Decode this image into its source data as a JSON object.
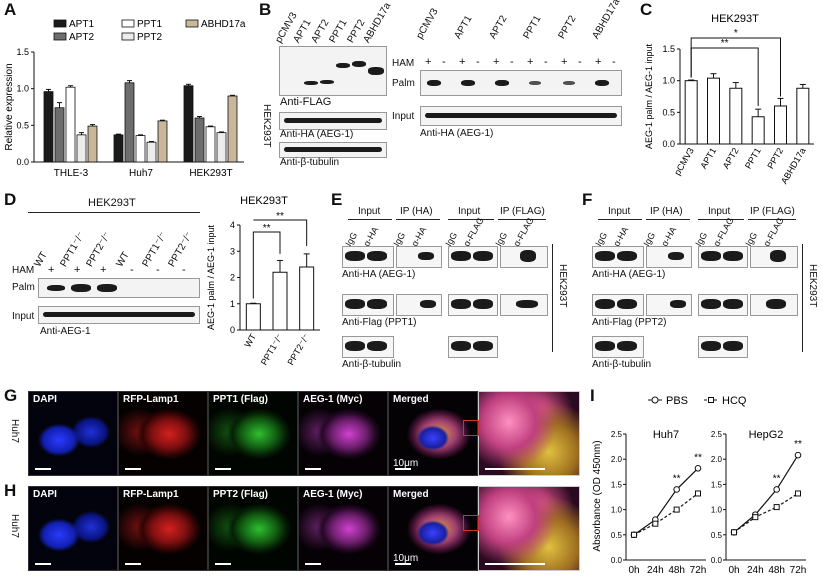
{
  "panels": {
    "A": {
      "letter": "A"
    },
    "B": {
      "letter": "B",
      "cell": "HEK293T",
      "lanes": [
        "pCMV3",
        "APT1",
        "APT2",
        "PPT1",
        "PPT2",
        "ABHD17a"
      ],
      "anti_flag": "Anti-FLAG",
      "anti_ha": "Anti-HA (AEG-1)",
      "anti_tub": "Anti-β-tubulin",
      "ham": "HAM",
      "palm": "Palm",
      "input": "Input",
      "anti_ha2": "Anti-HA (AEG-1)",
      "ham_signs": [
        "+",
        "-",
        "+",
        "-",
        "+",
        "-",
        "+",
        "-",
        "+",
        "-",
        "+",
        "-"
      ]
    },
    "C": {
      "letter": "C",
      "title": "HEK293T",
      "ylabel": "AEG-1 palm / AEG-1 input",
      "sig1": "*",
      "sig2": "**"
    },
    "D": {
      "letter": "D",
      "cell": "HEK293T",
      "lanes": [
        "WT",
        "PPT1⁻/⁻",
        "PPT2⁻/⁻",
        "WT",
        "PPT1⁻/⁻",
        "PPT2⁻/⁻"
      ],
      "ham": "HAM",
      "ham_signs": [
        "+",
        "+",
        "+",
        "-",
        "-",
        "-"
      ],
      "palm": "Palm",
      "input": "Input",
      "anti": "Anti-AEG-1",
      "title": "HEK293T",
      "ylabel": "AEG-1 palm / AEG-1 input",
      "sig": "**"
    },
    "E": {
      "letter": "E",
      "input": "Input",
      "ip_ha": "IP (HA)",
      "ip_flag": "IP (FLAG)",
      "lanes_ha": [
        "IgG",
        "α-HA",
        "IgG",
        "α-HA"
      ],
      "lanes_flag": [
        "IgG",
        "α-FLAG",
        "IgG",
        "α-FLAG"
      ],
      "row1": "Anti-HA (AEG-1)",
      "row2": "Anti-Flag (PPT1)",
      "row3": "Anti-β-tubulin",
      "cell": "HEK293T"
    },
    "F": {
      "letter": "F",
      "input": "Input",
      "ip_ha": "IP (HA)",
      "ip_flag": "IP (FLAG)",
      "lanes_ha": [
        "IgG",
        "α-HA",
        "IgG",
        "α-HA"
      ],
      "lanes_flag": [
        "IgG",
        "α-FLAG",
        "IgG",
        "α-FLAG"
      ],
      "row1": "Anti-HA (AEG-1)",
      "row2": "Anti-Flag (PPT2)",
      "row3": "Anti-β-tubulin",
      "cell": "HEK293T"
    },
    "G": {
      "letter": "G",
      "cell": "Huh7",
      "channels": [
        "DAPI",
        "RFP-Lamp1",
        "PPT1 (Flag)",
        "AEG-1 (Myc)",
        "Merged"
      ],
      "scale": "10μm"
    },
    "H": {
      "letter": "H",
      "cell": "Huh7",
      "channels": [
        "DAPI",
        "RFP-Lamp1",
        "PPT2 (Flag)",
        "AEG-1 (Myc)",
        "Merged"
      ],
      "scale": "10μm"
    },
    "I": {
      "letter": "I",
      "legend": [
        "PBS",
        "HCQ"
      ],
      "ylabel": "Absorbance (OD 450nm)",
      "sig": "**"
    }
  },
  "chart_data": [
    {
      "id": "A",
      "type": "bar",
      "categories": [
        "THLE-3",
        "Huh7",
        "HEK293T"
      ],
      "series": [
        {
          "name": "APT1",
          "color": "#1a1a1a",
          "values": [
            0.96,
            0.37,
            1.04
          ],
          "err": [
            0.03,
            0.01,
            0.02
          ]
        },
        {
          "name": "APT2",
          "color": "#6d6d6d",
          "values": [
            0.74,
            1.08,
            0.6
          ],
          "err": [
            0.07,
            0.03,
            0.02
          ]
        },
        {
          "name": "PPT1",
          "color": "#ffffff",
          "values": [
            1.02,
            0.36,
            0.48
          ],
          "err": [
            0.02,
            0.01,
            0.01
          ]
        },
        {
          "name": "PPT2",
          "color": "#ececec",
          "values": [
            0.37,
            0.27,
            0.4
          ],
          "err": [
            0.03,
            0.01,
            0.01
          ]
        },
        {
          "name": "ABHD17a",
          "color": "#c8b79a",
          "values": [
            0.49,
            0.56,
            0.9
          ],
          "err": [
            0.02,
            0.01,
            0.01
          ]
        }
      ],
      "ylabel": "Relative expression",
      "ylim": [
        0,
        1.5
      ],
      "yticks": [
        0.0,
        0.5,
        1.0,
        1.5
      ]
    },
    {
      "id": "C",
      "type": "bar",
      "categories": [
        "pCMV3",
        "APT1",
        "APT2",
        "PPT1",
        "PPT2",
        "ABHD17a"
      ],
      "values": [
        1.0,
        1.04,
        0.88,
        0.43,
        0.6,
        0.88
      ],
      "err": [
        0.01,
        0.07,
        0.09,
        0.12,
        0.12,
        0.06
      ],
      "ylim": [
        0,
        1.5
      ],
      "yticks": [
        0.0,
        0.5,
        1.0,
        1.5
      ]
    },
    {
      "id": "D",
      "type": "bar",
      "categories": [
        "WT",
        "PPT1⁻/⁻",
        "PPT2⁻/⁻"
      ],
      "values": [
        1.0,
        2.2,
        2.4
      ],
      "err": [
        0.02,
        0.45,
        0.5
      ],
      "ylim": [
        0,
        4
      ],
      "yticks": [
        0,
        1,
        2,
        3,
        4
      ]
    },
    {
      "id": "I",
      "type": "line",
      "x": [
        "0h",
        "24h",
        "48h",
        "72h"
      ],
      "subplots": [
        {
          "title": "Huh7",
          "ylim": [
            0,
            2.5
          ],
          "yticks": [
            0.0,
            0.5,
            1.0,
            1.5,
            2.0,
            2.5
          ],
          "series": [
            {
              "name": "PBS",
              "values": [
                0.5,
                0.8,
                1.4,
                1.82
              ]
            },
            {
              "name": "HCQ",
              "values": [
                0.5,
                0.72,
                1.0,
                1.32
              ]
            }
          ]
        },
        {
          "title": "HepG2",
          "ylim": [
            0,
            2.5
          ],
          "yticks": [
            0.0,
            0.5,
            1.0,
            1.5,
            2.0,
            2.5
          ],
          "series": [
            {
              "name": "PBS",
              "values": [
                0.55,
                0.9,
                1.4,
                2.08
              ]
            },
            {
              "name": "HCQ",
              "values": [
                0.55,
                0.85,
                1.05,
                1.32
              ]
            }
          ]
        }
      ]
    }
  ]
}
